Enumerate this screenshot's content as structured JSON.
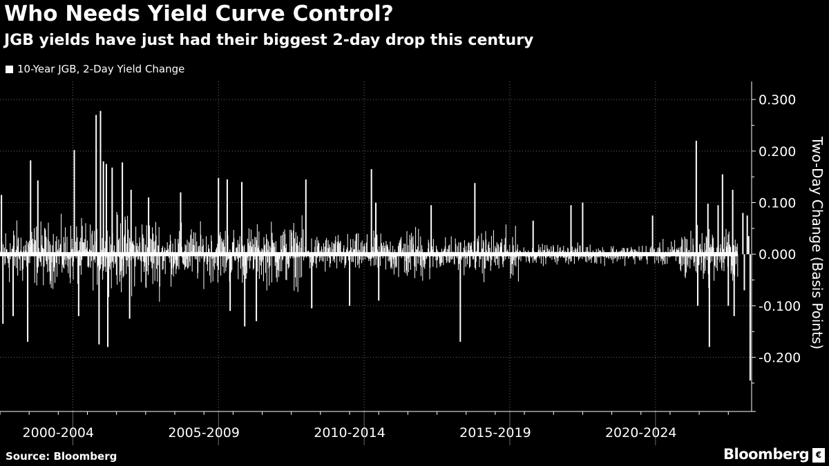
{
  "header": {
    "title": "Who Needs Yield Curve Control?",
    "subtitle": "JGB yields have just had their biggest 2-day drop this century"
  },
  "footer": {
    "source": "Source: Bloomberg",
    "brand": "Bloomberg",
    "brand_mark": "€"
  },
  "chart_data": {
    "type": "bar",
    "title": "Who Needs Yield Curve Control?",
    "subtitle": "JGB yields have just had their biggest 2-day drop this century",
    "legend": [
      {
        "name": "10-Year JGB, 2-Day Yield Change",
        "color": "#ffffff"
      }
    ],
    "legend_position": "top-left",
    "ylabel": "Two-Day Change (Basis Points)",
    "y_axis_side": "right",
    "ylim": [
      -0.305,
      0.335
    ],
    "yticks": [
      0.3,
      0.2,
      0.1,
      0.0,
      -0.1,
      -0.2
    ],
    "ytick_labels": [
      "0.300",
      "0.200",
      "0.100",
      "0.000",
      "-0.100",
      "-0.200"
    ],
    "xlim": [
      1999.0,
      2024.8
    ],
    "x_period_dividers": [
      2001.5,
      2006.5,
      2011.5,
      2016.5,
      2021.5
    ],
    "x_category_labels": [
      {
        "label": "2000-2004",
        "center": 2001.0
      },
      {
        "label": "2005-2009",
        "center": 2006.0
      },
      {
        "label": "2010-2014",
        "center": 2011.0
      },
      {
        "label": "2015-2019",
        "center": 2016.0
      },
      {
        "label": "2020-2024",
        "center": 2021.0
      }
    ],
    "grid": true,
    "volatility_regimes": [
      {
        "from": 1999.0,
        "to": 2003.0,
        "amplitude": 0.045
      },
      {
        "from": 2003.0,
        "to": 2004.5,
        "amplitude": 0.055
      },
      {
        "from": 2004.5,
        "to": 2008.0,
        "amplitude": 0.04
      },
      {
        "from": 2008.0,
        "to": 2009.5,
        "amplitude": 0.045
      },
      {
        "from": 2009.5,
        "to": 2012.5,
        "amplitude": 0.028
      },
      {
        "from": 2012.5,
        "to": 2013.8,
        "amplitude": 0.04
      },
      {
        "from": 2013.8,
        "to": 2015.5,
        "amplitude": 0.025
      },
      {
        "from": 2015.5,
        "to": 2016.8,
        "amplitude": 0.035
      },
      {
        "from": 2016.8,
        "to": 2021.7,
        "amplitude": 0.014
      },
      {
        "from": 2021.7,
        "to": 2022.3,
        "amplitude": 0.02
      },
      {
        "from": 2022.3,
        "to": 2024.8,
        "amplitude": 0.04
      }
    ],
    "notable_moves": [
      {
        "x": 1999.05,
        "value": 0.115
      },
      {
        "x": 1999.1,
        "value": -0.135
      },
      {
        "x": 1999.45,
        "value": -0.12
      },
      {
        "x": 1999.95,
        "value": -0.17
      },
      {
        "x": 2000.05,
        "value": 0.182
      },
      {
        "x": 2000.3,
        "value": 0.143
      },
      {
        "x": 2001.55,
        "value": 0.202
      },
      {
        "x": 2001.7,
        "value": -0.12
      },
      {
        "x": 2002.3,
        "value": 0.27
      },
      {
        "x": 2002.45,
        "value": 0.278
      },
      {
        "x": 2002.4,
        "value": -0.175
      },
      {
        "x": 2002.55,
        "value": 0.18
      },
      {
        "x": 2002.65,
        "value": 0.175
      },
      {
        "x": 2002.7,
        "value": -0.18
      },
      {
        "x": 2002.85,
        "value": 0.168
      },
      {
        "x": 2003.2,
        "value": 0.178
      },
      {
        "x": 2003.5,
        "value": 0.125
      },
      {
        "x": 2003.45,
        "value": -0.125
      },
      {
        "x": 2004.1,
        "value": 0.11
      },
      {
        "x": 2005.2,
        "value": 0.12
      },
      {
        "x": 2006.5,
        "value": 0.148
      },
      {
        "x": 2006.8,
        "value": 0.145
      },
      {
        "x": 2006.9,
        "value": -0.11
      },
      {
        "x": 2007.3,
        "value": 0.14
      },
      {
        "x": 2007.4,
        "value": -0.14
      },
      {
        "x": 2007.8,
        "value": -0.13
      },
      {
        "x": 2009.5,
        "value": 0.145
      },
      {
        "x": 2009.7,
        "value": -0.105
      },
      {
        "x": 2011.0,
        "value": -0.1
      },
      {
        "x": 2011.75,
        "value": 0.165
      },
      {
        "x": 2011.9,
        "value": 0.1
      },
      {
        "x": 2012.0,
        "value": -0.09
      },
      {
        "x": 2013.8,
        "value": 0.095
      },
      {
        "x": 2014.8,
        "value": -0.17
      },
      {
        "x": 2015.3,
        "value": 0.138
      },
      {
        "x": 2017.3,
        "value": 0.065
      },
      {
        "x": 2018.6,
        "value": 0.095
      },
      {
        "x": 2019.0,
        "value": 0.1
      },
      {
        "x": 2021.4,
        "value": 0.075
      },
      {
        "x": 2022.9,
        "value": 0.22
      },
      {
        "x": 2022.95,
        "value": -0.1
      },
      {
        "x": 2023.3,
        "value": 0.098
      },
      {
        "x": 2023.35,
        "value": -0.18
      },
      {
        "x": 2023.65,
        "value": 0.095
      },
      {
        "x": 2023.8,
        "value": 0.155
      },
      {
        "x": 2024.0,
        "value": -0.1
      },
      {
        "x": 2024.15,
        "value": 0.125
      },
      {
        "x": 2024.2,
        "value": -0.12
      },
      {
        "x": 2024.5,
        "value": 0.08
      },
      {
        "x": 2024.55,
        "value": -0.07
      },
      {
        "x": 2024.65,
        "value": 0.075
      },
      {
        "x": 2024.7,
        "value": 0.035
      },
      {
        "x": 2024.75,
        "value": -0.245
      }
    ]
  }
}
